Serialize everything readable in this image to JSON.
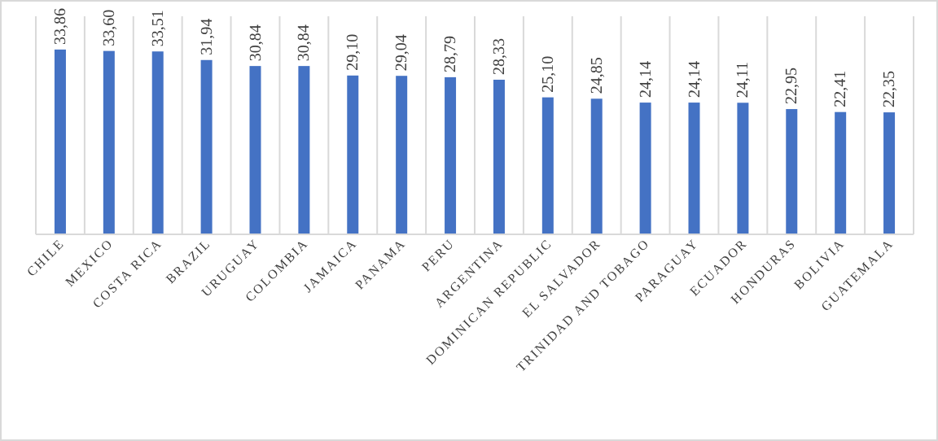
{
  "chart_data": {
    "type": "bar",
    "categories": [
      "CHILE",
      "MEXICO",
      "COSTA RICA",
      "BRAZIL",
      "URUGUAY",
      "COLOMBIA",
      "JAMAICA",
      "PANAMA",
      "PERU",
      "ARGENTINA",
      "DOMINICAN REPUBLIC",
      "EL SALVADOR",
      "TRINIDAD AND TOBAGO",
      "PARAGUAY",
      "ECUADOR",
      "HONDURAS",
      "BOLIVIA",
      "GUATEMALA"
    ],
    "values": [
      33.86,
      33.6,
      33.51,
      31.94,
      30.84,
      30.84,
      29.1,
      29.04,
      28.79,
      28.33,
      25.1,
      24.85,
      24.14,
      24.14,
      24.11,
      22.95,
      22.41,
      22.35
    ],
    "value_labels": [
      "33,86",
      "33,60",
      "33,51",
      "31,94",
      "30,84",
      "30,84",
      "29,10",
      "29,04",
      "28,79",
      "28,33",
      "25,10",
      "24,85",
      "24,14",
      "24,14",
      "24,11",
      "22,95",
      "22,41",
      "22,35"
    ],
    "color": "#4472c4",
    "grid": "x"
  }
}
